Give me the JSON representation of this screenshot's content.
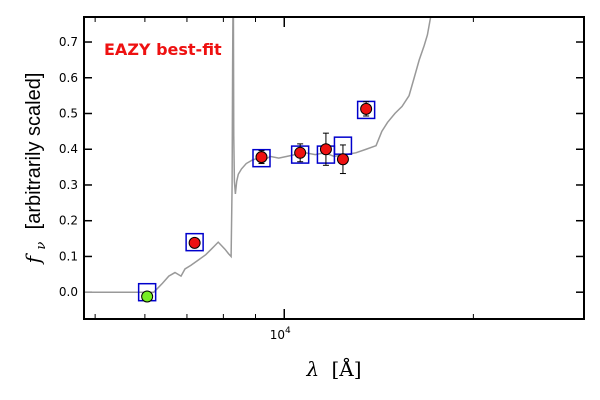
{
  "chart_data": {
    "type": "scatter",
    "annotation": {
      "text": "EAZY best-fit",
      "color": "#ee1111"
    },
    "xlabel_main": "λ",
    "xlabel_unit": "[Å]",
    "ylabel_sym": "f",
    "ylabel_sub": "ν",
    "ylabel_text": "[arbitrarily scaled]",
    "x_scale": "log",
    "xlim": [
      4800,
      30000
    ],
    "ylim": [
      -0.075,
      0.77
    ],
    "x_ticks": [
      {
        "value": 10000,
        "base": "10",
        "exp": "4"
      }
    ],
    "y_ticks": [
      {
        "value": 0.0,
        "label": "0.0"
      },
      {
        "value": 0.1,
        "label": "0.1"
      },
      {
        "value": 0.2,
        "label": "0.2"
      },
      {
        "value": 0.3,
        "label": "0.3"
      },
      {
        "value": 0.4,
        "label": "0.4"
      },
      {
        "value": 0.5,
        "label": "0.5"
      },
      {
        "value": 0.6,
        "label": "0.6"
      },
      {
        "value": 0.7,
        "label": "0.7"
      }
    ],
    "colors": {
      "model": "#999999",
      "model_phot": "#0000cc",
      "observed": "#ee1111",
      "nondetection": "#77ee22",
      "errorbar": "#000000"
    },
    "model_curve": [
      [
        4800,
        0.0
      ],
      [
        6200,
        0.0
      ],
      [
        6400,
        0.025
      ],
      [
        6550,
        0.045
      ],
      [
        6700,
        0.055
      ],
      [
        6850,
        0.045
      ],
      [
        6950,
        0.065
      ],
      [
        7100,
        0.075
      ],
      [
        7300,
        0.09
      ],
      [
        7500,
        0.105
      ],
      [
        7650,
        0.12
      ],
      [
        7750,
        0.13
      ],
      [
        7850,
        0.14
      ],
      [
        7950,
        0.13
      ],
      [
        8050,
        0.12
      ],
      [
        8150,
        0.108
      ],
      [
        8230,
        0.1
      ],
      [
        8260,
        0.3
      ],
      [
        8275,
        0.62
      ],
      [
        8285,
        0.77
      ],
      [
        8300,
        0.77
      ],
      [
        8310,
        0.44
      ],
      [
        8330,
        0.31
      ],
      [
        8360,
        0.275
      ],
      [
        8400,
        0.31
      ],
      [
        8450,
        0.33
      ],
      [
        8550,
        0.345
      ],
      [
        8700,
        0.36
      ],
      [
        8900,
        0.37
      ],
      [
        9100,
        0.375
      ],
      [
        9300,
        0.37
      ],
      [
        9500,
        0.38
      ],
      [
        9800,
        0.375
      ],
      [
        10100,
        0.38
      ],
      [
        10400,
        0.385
      ],
      [
        10800,
        0.39
      ],
      [
        11200,
        0.385
      ],
      [
        11600,
        0.39
      ],
      [
        12000,
        0.38
      ],
      [
        12500,
        0.385
      ],
      [
        13000,
        0.39
      ],
      [
        13500,
        0.4
      ],
      [
        14000,
        0.41
      ],
      [
        14300,
        0.45
      ],
      [
        14600,
        0.475
      ],
      [
        15000,
        0.5
      ],
      [
        15400,
        0.52
      ],
      [
        15800,
        0.55
      ],
      [
        16100,
        0.6
      ],
      [
        16400,
        0.65
      ],
      [
        16700,
        0.69
      ],
      [
        16900,
        0.72
      ],
      [
        17100,
        0.77
      ]
    ],
    "model_photometry": [
      {
        "x": 6050,
        "y": 0.0
      },
      {
        "x": 7200,
        "y": 0.14
      },
      {
        "x": 9200,
        "y": 0.375
      },
      {
        "x": 10600,
        "y": 0.385
      },
      {
        "x": 11650,
        "y": 0.385
      },
      {
        "x": 12400,
        "y": 0.41
      },
      {
        "x": 13500,
        "y": 0.51
      }
    ],
    "observed_points": [
      {
        "x": 6050,
        "y": -0.012,
        "yerr": 0.012,
        "kind": "nondetection"
      },
      {
        "x": 7200,
        "y": 0.138,
        "yerr": 0.008,
        "kind": "detection"
      },
      {
        "x": 9200,
        "y": 0.378,
        "yerr": 0.018,
        "kind": "detection"
      },
      {
        "x": 10600,
        "y": 0.39,
        "yerr": 0.025,
        "kind": "detection"
      },
      {
        "x": 11650,
        "y": 0.4,
        "yerr": 0.045,
        "kind": "detection"
      },
      {
        "x": 12400,
        "y": 0.372,
        "yerr": 0.04,
        "kind": "detection"
      },
      {
        "x": 13500,
        "y": 0.513,
        "yerr": 0.02,
        "kind": "detection"
      }
    ]
  }
}
